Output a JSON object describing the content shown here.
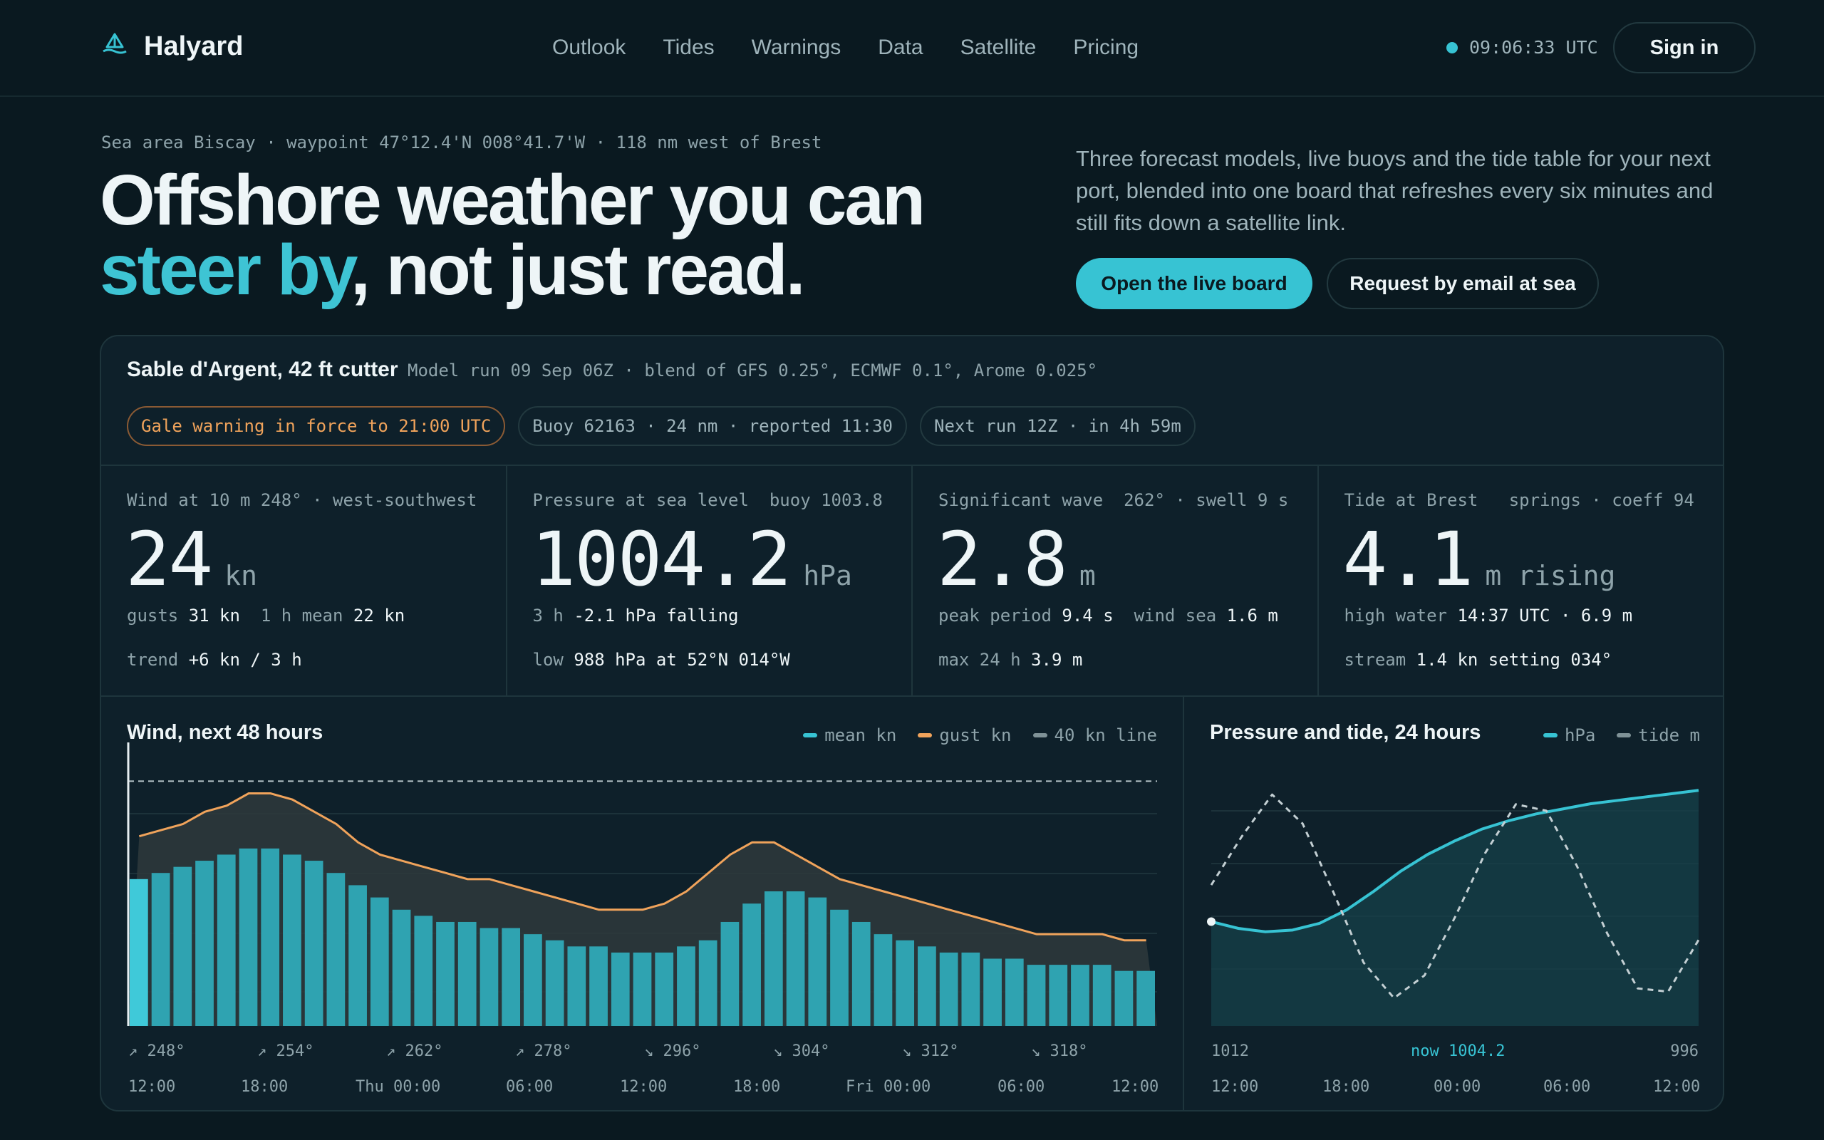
{
  "brand": {
    "name": "Halyard",
    "icon": "sail-logo-icon"
  },
  "nav": [
    "Outlook",
    "Tides",
    "Warnings",
    "Data",
    "Satellite",
    "Pricing"
  ],
  "clock": "09:06:33 UTC",
  "signin_label": "Sign in",
  "hero": {
    "eyebrow": "Sea area Biscay · waypoint 47°12.4'N 008°41.7'W · 118 nm west of Brest",
    "title_line1": "Offshore weather you can",
    "title_accent": "steer by",
    "title_rest": ", not just read.",
    "lede": "Three forecast models, live buoys and the tide table for your next port, blended into one board that refreshes every six minutes and still fits down a satellite link.",
    "primary_cta": "Open the live board",
    "secondary_cta": "Request by email at sea"
  },
  "board": {
    "vessel": "Sable d'Argent, 42 ft cutter",
    "model_run": "Model run 09 Sep 06Z · blend of GFS 0.25°, ECMWF 0.1°, Arome 0.025°",
    "pills": {
      "warning": "Gale warning in force to 21:00 UTC",
      "buoy": "Buoy 62163 · 24 nm · reported 11:30",
      "next_run": "Next run 12Z · in 4h 59m"
    },
    "stats": {
      "wind": {
        "label": "Wind at 10 m",
        "meta": "248° · west-southwest",
        "value": "24",
        "unit": "kn",
        "gusts_label": "gusts",
        "gusts": "31 kn",
        "mean_label": "1 h mean",
        "mean": "22 kn",
        "trend_label": "trend",
        "trend": "+6 kn / 3 h"
      },
      "pressure": {
        "label": "Pressure at sea level",
        "meta": "buoy 1003.8",
        "value": "1004.2",
        "unit": "hPa",
        "change_label": "3 h",
        "change": "-2.1 hPa falling",
        "low_label": "low",
        "low": "988 hPa at 52°N 014°W"
      },
      "wave": {
        "label": "Significant wave",
        "meta": "262° · swell 9 s",
        "value": "2.8",
        "unit": "m",
        "peak_label": "peak period",
        "peak": "9.4 s",
        "windsea_label": "wind sea",
        "windsea": "1.6 m",
        "max_label": "max 24 h",
        "max": "3.9 m"
      },
      "tide": {
        "label": "Tide at Brest",
        "meta": "springs · coeff 94",
        "value": "4.1",
        "unit": "m rising",
        "hw_label": "high water",
        "hw": "14:37 UTC · 6.9 m",
        "stream_label": "stream",
        "stream": "1.4 kn setting 034°"
      }
    }
  },
  "wind_panel": {
    "title": "Wind, next 48 hours",
    "legend": {
      "mean": "mean kn",
      "gust": "gust kn",
      "line": "40 kn line"
    },
    "directions": [
      "↗ 248°",
      "↗ 254°",
      "↗ 262°",
      "↗ 278°",
      "↘ 296°",
      "↘ 304°",
      "↘ 312°",
      "↘ 318°"
    ],
    "times": [
      "12:00",
      "18:00",
      "Thu 00:00",
      "06:00",
      "12:00",
      "18:00",
      "Fri 00:00",
      "06:00",
      "12:00"
    ]
  },
  "pressure_panel": {
    "title": "Pressure and tide, 24 hours",
    "legend": {
      "hpa": "hPa",
      "tide": "tide m"
    },
    "labels": {
      "left": "1012",
      "now": "now 1004.2",
      "right": "996"
    },
    "times": [
      "12:00",
      "18:00",
      "00:00",
      "06:00",
      "12:00"
    ]
  },
  "colors": {
    "accent": "#37c3d3",
    "gust": "#f0a35b",
    "bg": "#0a1920",
    "panel": "#0e202a"
  },
  "chart_data": [
    {
      "type": "bar",
      "title": "Wind, next 48 hours",
      "ylim": [
        0,
        44
      ],
      "reference_line": 40,
      "series": [
        {
          "name": "mean kn",
          "values": [
            24,
            25,
            26,
            27,
            28,
            29,
            29,
            28,
            27,
            25,
            23,
            21,
            19,
            18,
            17,
            17,
            16,
            16,
            15,
            14,
            13,
            13,
            12,
            12,
            12,
            13,
            14,
            17,
            20,
            22,
            22,
            21,
            19,
            17,
            15,
            14,
            13,
            12,
            12,
            11,
            11,
            10,
            10,
            10,
            10,
            9,
            9
          ]
        },
        {
          "name": "gust kn",
          "values": [
            31,
            32,
            33,
            35,
            36,
            38,
            38,
            37,
            35,
            33,
            30,
            28,
            27,
            26,
            25,
            24,
            24,
            23,
            22,
            21,
            20,
            19,
            19,
            19,
            20,
            22,
            25,
            28,
            30,
            30,
            28,
            26,
            24,
            23,
            22,
            21,
            20,
            19,
            18,
            17,
            16,
            15,
            15,
            15,
            15,
            14,
            14
          ]
        }
      ]
    },
    {
      "type": "line",
      "title": "Pressure and tide, 24 hours",
      "series": [
        {
          "name": "hPa",
          "values": [
            1004.2,
            1003.8,
            1003.6,
            1003.7,
            1004.1,
            1004.9,
            1006.0,
            1007.2,
            1008.2,
            1009.0,
            1009.7,
            1010.2,
            1010.6,
            1010.9,
            1011.2,
            1011.4,
            1011.6,
            1011.8,
            1012.0
          ]
        },
        {
          "name": "tide m",
          "values": [
            4.1,
            5.6,
            6.9,
            6.0,
            3.9,
            1.7,
            0.6,
            1.3,
            3.1,
            5.1,
            6.6,
            6.4,
            4.7,
            2.6,
            0.9,
            0.8,
            2.4
          ]
        }
      ]
    }
  ]
}
